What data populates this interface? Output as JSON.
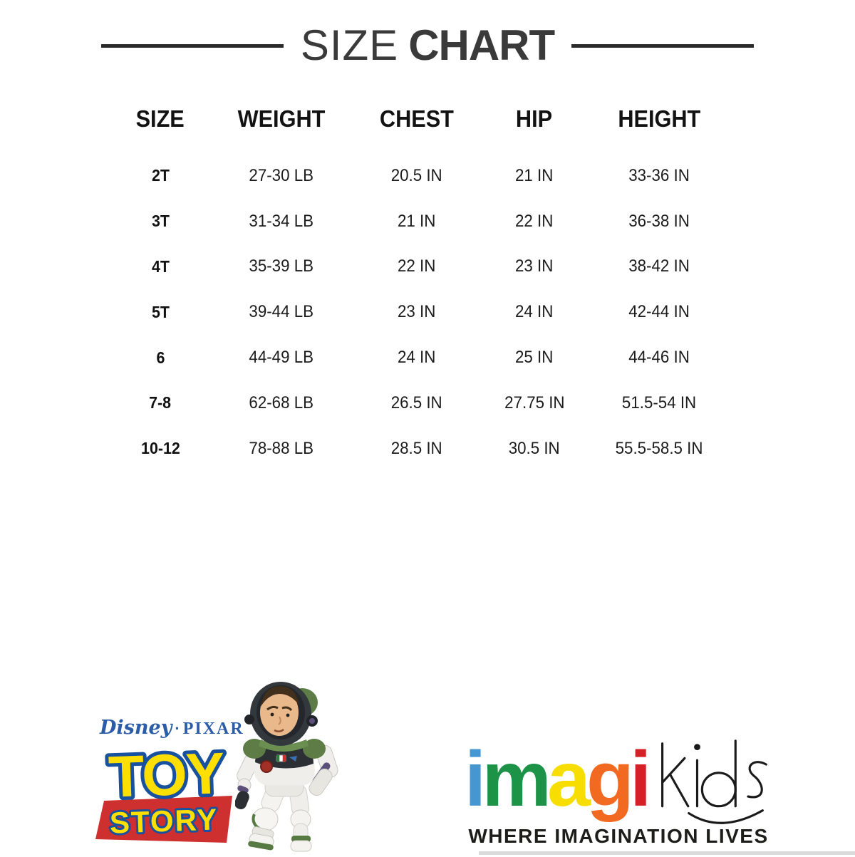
{
  "title": {
    "word_light": "SIZE",
    "word_bold": "CHART"
  },
  "chart_data": {
    "type": "table",
    "title": "SIZE CHART",
    "columns": [
      "SIZE",
      "WEIGHT",
      "CHEST",
      "HIP",
      "HEIGHT"
    ],
    "rows": [
      [
        "2T",
        "27-30 LB",
        "20.5 IN",
        "21 IN",
        "33-36 IN"
      ],
      [
        "3T",
        "31-34 LB",
        "21 IN",
        "22 IN",
        "36-38 IN"
      ],
      [
        "4T",
        "35-39 LB",
        "22 IN",
        "23 IN",
        "38-42 IN"
      ],
      [
        "5T",
        "39-44 LB",
        "23 IN",
        "24 IN",
        "42-44 IN"
      ],
      [
        "6",
        "44-49 LB",
        "24 IN",
        "25 IN",
        "44-46 IN"
      ],
      [
        "7-8",
        "62-68 LB",
        "26.5 IN",
        "27.75 IN",
        "51.5-54 IN"
      ],
      [
        "10-12",
        "78-88 LB",
        "28.5 IN",
        "30.5 IN",
        "55.5-58.5 IN"
      ]
    ]
  },
  "branding": {
    "disney": "Disney",
    "separator": "·",
    "pixar": "PIXAR",
    "toy": "TOY",
    "story": "STORY",
    "buzz_alt": "buzz-lightyear-character",
    "colors": {
      "toy_fill": "#ffdf00",
      "toy_outline": "#17519f",
      "story_bg": "#ce2f2f",
      "disney_blue": "#2a5ca8"
    }
  },
  "imagikids": {
    "letters": [
      {
        "char": "i",
        "color": "#4696d2"
      },
      {
        "char": "m",
        "color": "#1d9348"
      },
      {
        "char": "a",
        "color": "#f8de00"
      },
      {
        "char": "g",
        "color": "#f26a21"
      },
      {
        "char": "i",
        "color": "#d62027"
      }
    ],
    "kids_word": "kids",
    "tagline": "WHERE IMAGINATION LIVES"
  }
}
